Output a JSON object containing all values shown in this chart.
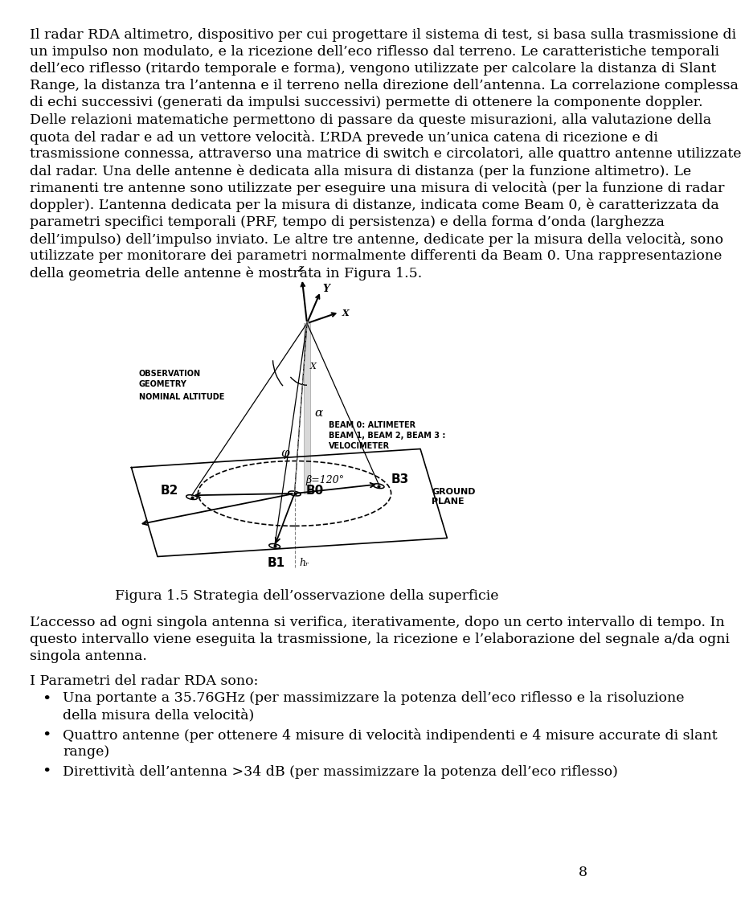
{
  "background_color": "#ffffff",
  "page_number": "8",
  "para1_lines": [
    "Il radar RDA altimetro, dispositivo per cui progettare il sistema di test, si basa sulla trasmissione di",
    "un impulso non modulato, e la ricezione dell’eco riflesso dal terreno. Le caratteristiche temporali",
    "dell’eco riflesso (ritardo temporale e forma), vengono utilizzate per calcolare la distanza di Slant",
    "Range, la distanza tra l’antenna e il terreno nella direzione dell’antenna. La correlazione complessa",
    "di echi successivi (generati da impulsi successivi) permette di ottenere la componente doppler.",
    "Delle relazioni matematiche permettono di passare da queste misurazioni, alla valutazione della",
    "quota del radar e ad un vettore velocità. L’RDA prevede un’unica catena di ricezione e di",
    "trasmissione connessa, attraverso una matrice di switch e circolatori, alle quattro antenne utilizzate",
    "dal radar. Una delle antenne è dedicata alla misura di distanza (per la funzione altimetro). Le",
    "rimanenti tre antenne sono utilizzate per eseguire una misura di velocità (per la funzione di radar",
    "doppler). L’antenna dedicata per la misura di distanze, indicata come Beam 0, è caratterizzata da",
    "parametri specifici temporali (PRF, tempo di persistenza) e della forma d’onda (larghezza",
    "dell’impulso) dell’impulso inviato. Le altre tre antenne, dedicate per la misura della velocità, sono",
    "utilizzate per monitorare dei parametri normalmente differenti da Beam 0. Una rappresentazione",
    "della geometria delle antenne è mostrata in Figura 1.5."
  ],
  "figure_caption": "Figura 1.5 Strategia dell’osservazione della superficie",
  "para2_lines": [
    "L’accesso ad ogni singola antenna si verifica, iterativamente, dopo un certo intervallo di tempo. In",
    "questo intervallo viene eseguita la trasmissione, la ricezione e l’elaborazione del segnale a/da ogni",
    "singola antenna."
  ],
  "para3_header": "I Parametri del radar RDA sono:",
  "bullet1_lines": [
    "Una portante a 35.76GHz (per massimizzare la potenza dell’eco riflesso e la risoluzione",
    "della misura della velocità)"
  ],
  "bullet2_lines": [
    "Quattro antenne (per ottenere 4 misure di velocità indipendenti e 4 misure accurate di slant",
    "range)"
  ],
  "bullet3_lines": [
    "Direttività dell’antenna >34 dB (per massimizzare la potenza dell’eco riflesso)"
  ]
}
